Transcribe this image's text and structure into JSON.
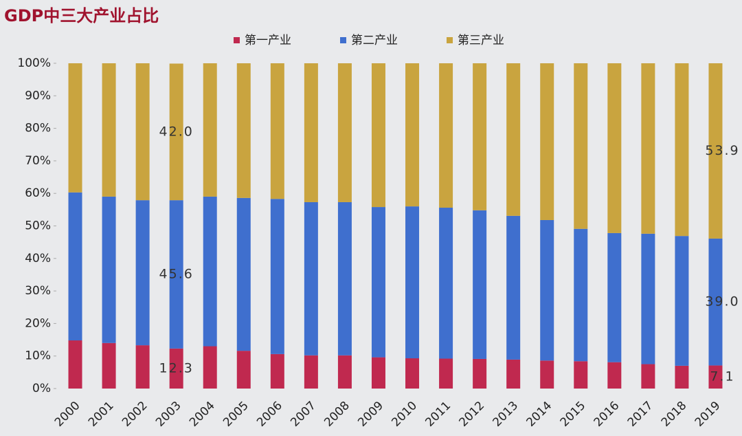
{
  "chart_data": {
    "type": "stacked_bar",
    "title": "GDP中三大产业占比",
    "categories": [
      "2000",
      "2001",
      "2002",
      "2003",
      "2004",
      "2005",
      "2006",
      "2007",
      "2008",
      "2009",
      "2010",
      "2011",
      "2012",
      "2013",
      "2014",
      "2015",
      "2016",
      "2017",
      "2018",
      "2019"
    ],
    "series": [
      {
        "name": "第一产业",
        "color": "#c0294f",
        "values": [
          14.8,
          14.0,
          13.3,
          12.3,
          13.0,
          11.6,
          10.6,
          10.2,
          10.2,
          9.6,
          9.3,
          9.2,
          9.1,
          8.9,
          8.6,
          8.4,
          8.1,
          7.5,
          7.0,
          7.1
        ],
        "value_labels": [
          null,
          null,
          null,
          "12.3",
          null,
          null,
          null,
          null,
          null,
          null,
          null,
          null,
          null,
          null,
          null,
          null,
          null,
          null,
          null,
          "7.1"
        ]
      },
      {
        "name": "第二产业",
        "color": "#3f6fce",
        "values": [
          45.5,
          45.0,
          44.6,
          45.6,
          46.0,
          47.0,
          47.7,
          47.1,
          47.1,
          46.2,
          46.7,
          46.4,
          45.7,
          44.2,
          43.2,
          40.7,
          39.7,
          40.1,
          39.9,
          39.0
        ],
        "value_labels": [
          null,
          null,
          null,
          "45.6",
          null,
          null,
          null,
          null,
          null,
          null,
          null,
          null,
          null,
          null,
          null,
          null,
          null,
          null,
          null,
          "39.0"
        ]
      },
      {
        "name": "第三产业",
        "color": "#c9a43f",
        "values": [
          39.7,
          41.0,
          42.1,
          42.0,
          41.0,
          41.4,
          41.7,
          42.7,
          42.7,
          44.2,
          44.0,
          44.4,
          45.2,
          46.9,
          48.2,
          50.9,
          52.2,
          52.4,
          53.1,
          53.9
        ],
        "value_labels": [
          null,
          null,
          null,
          "42.0",
          null,
          null,
          null,
          null,
          null,
          null,
          null,
          null,
          null,
          null,
          null,
          null,
          null,
          null,
          null,
          "53.9"
        ]
      }
    ],
    "ylim": [
      0,
      100
    ],
    "yticks": [
      {
        "value": 0,
        "label": "0%"
      },
      {
        "value": 10,
        "label": "10%"
      },
      {
        "value": 20,
        "label": "20%"
      },
      {
        "value": 30,
        "label": "30%"
      },
      {
        "value": 40,
        "label": "40%"
      },
      {
        "value": 50,
        "label": "50%"
      },
      {
        "value": 60,
        "label": "60%"
      },
      {
        "value": 70,
        "label": "70%"
      },
      {
        "value": 80,
        "label": "80%"
      },
      {
        "value": 90,
        "label": "90%"
      },
      {
        "value": 100,
        "label": "100%"
      }
    ],
    "legend": "top"
  }
}
